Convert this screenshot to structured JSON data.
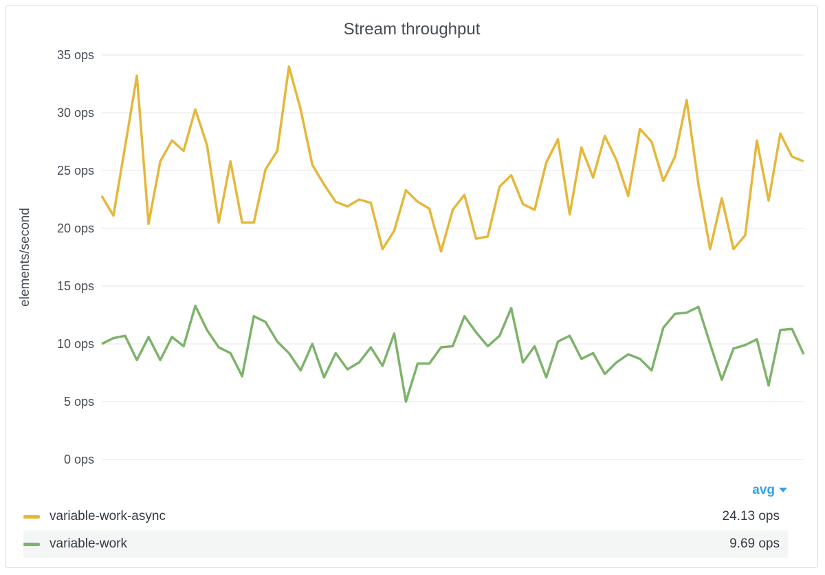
{
  "panel": {
    "title": "Stream throughput"
  },
  "legend": {
    "sort_label": "avg",
    "items": [
      {
        "name": "variable-work-async",
        "color": "#e5b73a",
        "avg": "24.13 ops"
      },
      {
        "name": "variable-work",
        "color": "#7eb36a",
        "avg": "9.69 ops"
      }
    ]
  },
  "chart_data": {
    "type": "line",
    "title": "Stream throughput",
    "ylabel": "elements/second",
    "xlabel": "",
    "ylim": [
      0,
      35
    ],
    "yticks": [
      "0 ops",
      "5 ops",
      "10 ops",
      "15 ops",
      "20 ops",
      "25 ops",
      "30 ops",
      "35 ops"
    ],
    "grid": true,
    "legend_position": "bottom",
    "series": [
      {
        "name": "variable-work-async",
        "color": "#e5b73a",
        "values": [
          22.8,
          21.1,
          27.1,
          33.2,
          20.4,
          25.8,
          27.6,
          26.7,
          30.3,
          27.2,
          20.5,
          25.8,
          20.5,
          20.5,
          25.1,
          26.7,
          34.0,
          30.3,
          25.5,
          23.8,
          22.3,
          21.9,
          22.5,
          22.2,
          18.2,
          19.8,
          23.3,
          22.3,
          21.7,
          18.0,
          21.6,
          22.9,
          19.1,
          19.3,
          23.6,
          24.6,
          22.1,
          21.6,
          25.7,
          27.7,
          21.2,
          27.0,
          24.4,
          28.0,
          25.9,
          22.8,
          28.6,
          27.5,
          24.1,
          26.2,
          31.1,
          23.8,
          18.2,
          22.6,
          18.2,
          19.4,
          27.6,
          22.4,
          28.2,
          26.2,
          25.8
        ]
      },
      {
        "name": "variable-work",
        "color": "#7eb36a",
        "values": [
          10.0,
          10.5,
          10.7,
          8.6,
          10.6,
          8.6,
          10.6,
          9.8,
          13.3,
          11.2,
          9.7,
          9.2,
          7.2,
          12.4,
          11.9,
          10.2,
          9.2,
          7.7,
          10.0,
          7.1,
          9.2,
          7.8,
          8.4,
          9.7,
          8.1,
          10.9,
          5.0,
          8.3,
          8.3,
          9.7,
          9.8,
          12.4,
          11.0,
          9.8,
          10.7,
          13.1,
          8.4,
          9.8,
          7.1,
          10.2,
          10.7,
          8.7,
          9.2,
          7.4,
          8.4,
          9.1,
          8.7,
          7.7,
          11.4,
          12.6,
          12.7,
          13.2,
          10.0,
          6.9,
          9.6,
          9.9,
          10.4,
          6.4,
          11.2,
          11.3,
          9.1
        ]
      }
    ]
  }
}
